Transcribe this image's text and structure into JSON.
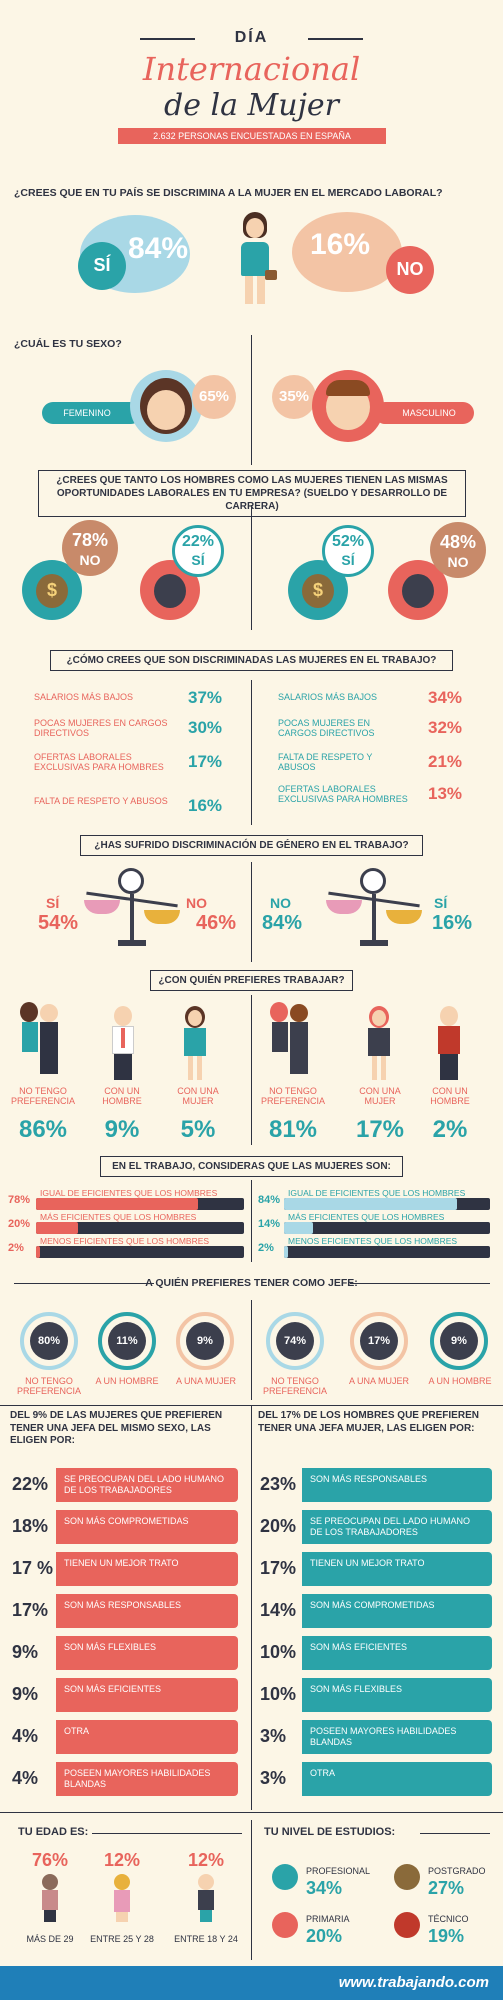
{
  "header": {
    "dia": "DÍA",
    "title_line1": "Internacional",
    "title_line2": "de la Mujer",
    "subtitle": "2.632 PERSONAS ENCUESTADAS EN ESPAÑA"
  },
  "q1": {
    "question": "¿CREES QUE EN TU PAÍS SE DISCRIMINA A LA MUJER EN EL MERCADO LABORAL?",
    "si_label": "SÍ",
    "si_pct": "84%",
    "no_pct": "16%",
    "no_label": "NO"
  },
  "q2": {
    "question": "¿CUÁL ES TU SEXO?",
    "fem_label": "FEMENINO",
    "fem_pct": "65%",
    "masc_pct": "35%",
    "masc_label": "MASCULINO"
  },
  "q3": {
    "question": "¿CREES QUE TANTO LOS HOMBRES COMO LAS MUJERES TIENEN LAS MISMAS OPORTUNIDADES LABORALES EN TU EMPRESA? (SUELDO Y DESARROLLO DE CARRERA)",
    "left": {
      "no_pct": "78%",
      "no_label": "NO",
      "si_pct": "22%",
      "si_label": "SÍ"
    },
    "right": {
      "si_pct": "52%",
      "si_label": "SÍ",
      "no_pct": "48%",
      "no_label": "NO"
    }
  },
  "q4": {
    "question": "¿CÓMO CREES QUE SON DISCRIMINADAS LAS MUJERES EN EL TRABAJO?",
    "left": [
      {
        "label": "SALARIOS MÁS BAJOS",
        "pct": "37%"
      },
      {
        "label": "POCAS MUJERES EN CARGOS DIRECTIVOS",
        "pct": "30%"
      },
      {
        "label": "OFERTAS LABORALES EXCLUSIVAS PARA HOMBRES",
        "pct": "17%"
      },
      {
        "label": "FALTA DE RESPETO Y ABUSOS",
        "pct": "16%"
      }
    ],
    "right": [
      {
        "label": "SALARIOS MÁS BAJOS",
        "pct": "34%"
      },
      {
        "label": "POCAS MUJERES EN CARGOS DIRECTIVOS",
        "pct": "32%"
      },
      {
        "label": "FALTA DE RESPETO Y ABUSOS",
        "pct": "21%"
      },
      {
        "label": "OFERTAS LABORALES EXCLUSIVAS PARA HOMBRES",
        "pct": "13%"
      }
    ]
  },
  "q5": {
    "question": "¿HAS SUFRIDO DISCRIMINACIÓN DE GÉNERO EN EL TRABAJO?",
    "left": {
      "si_label": "SÍ",
      "si_pct": "54%",
      "no_label": "NO",
      "no_pct": "46%"
    },
    "right": {
      "no_label": "NO",
      "no_pct": "84%",
      "si_label": "SÍ",
      "si_pct": "16%"
    }
  },
  "q6": {
    "question": "¿CON QUIÉN PREFIERES TRABAJAR?",
    "left": [
      {
        "label": "NO TENGO PREFERENCIA",
        "pct": "86%"
      },
      {
        "label": "CON UN HOMBRE",
        "pct": "9%"
      },
      {
        "label": "CON UNA MUJER",
        "pct": "5%"
      }
    ],
    "right": [
      {
        "label": "NO TENGO PREFERENCIA",
        "pct": "81%"
      },
      {
        "label": "CON UNA MUJER",
        "pct": "17%"
      },
      {
        "label": "CON UN HOMBRE",
        "pct": "2%"
      }
    ]
  },
  "q7": {
    "question": "EN EL TRABAJO, CONSIDERAS QUE LAS MUJERES SON:",
    "left": [
      {
        "pct": "78%",
        "label": "IGUAL DE EFICIENTES QUE LOS HOMBRES",
        "value": 78
      },
      {
        "pct": "20%",
        "label": "MÁS EFICIENTES QUE LOS HOMBRES",
        "value": 20
      },
      {
        "pct": "2%",
        "label": "MENOS EFICIENTES QUE LOS HOMBRES",
        "value": 2
      }
    ],
    "right": [
      {
        "pct": "84%",
        "label": "IGUAL DE EFICIENTES QUE LOS HOMBRES",
        "value": 84
      },
      {
        "pct": "14%",
        "label": "MÁS EFICIENTES QUE LOS HOMBRES",
        "value": 14
      },
      {
        "pct": "2%",
        "label": "MENOS EFICIENTES QUE LOS HOMBRES",
        "value": 2
      }
    ]
  },
  "q8": {
    "question": "A QUIÉN PREFIERES TENER COMO JEFE:",
    "left": [
      {
        "pct": "80%",
        "label": "NO TENGO PREFERENCIA"
      },
      {
        "pct": "11%",
        "label": "A UN HOMBRE"
      },
      {
        "pct": "9%",
        "label": "A UNA MUJER"
      }
    ],
    "right": [
      {
        "pct": "74%",
        "label": "NO TENGO PREFERENCIA"
      },
      {
        "pct": "17%",
        "label": "A UNA MUJER"
      },
      {
        "pct": "9%",
        "label": "A UN HOMBRE"
      }
    ]
  },
  "q9": {
    "left_title": "DEL 9% DE LAS MUJERES QUE PREFIEREN TENER UNA JEFA DEL MISMO SEXO, LAS ELIGEN POR:",
    "right_title": "DEL 17% DE LOS HOMBRES QUE PREFIEREN TENER UNA JEFA MUJER, LAS ELIGEN POR:",
    "left": [
      {
        "pct": "22%",
        "label": "SE PREOCUPAN DEL LADO HUMANO DE LOS TRABAJADORES"
      },
      {
        "pct": "18%",
        "label": "SON MÁS COMPROMETIDAS"
      },
      {
        "pct": "17 %",
        "label": "TIENEN UN MEJOR TRATO"
      },
      {
        "pct": "17%",
        "label": "SON MÁS RESPONSABLES"
      },
      {
        "pct": "9%",
        "label": "SON MÁS FLEXIBLES"
      },
      {
        "pct": "9%",
        "label": "SON MÁS EFICIENTES"
      },
      {
        "pct": "4%",
        "label": "OTRA"
      },
      {
        "pct": "4%",
        "label": "POSEEN MAYORES HABILIDADES BLANDAS"
      }
    ],
    "right": [
      {
        "pct": "23%",
        "label": "SON MÁS RESPONSABLES"
      },
      {
        "pct": "20%",
        "label": "SE PREOCUPAN DEL LADO HUMANO DE LOS TRABAJADORES"
      },
      {
        "pct": "17%",
        "label": "TIENEN UN MEJOR TRATO"
      },
      {
        "pct": "14%",
        "label": "SON MÁS COMPROMETIDAS"
      },
      {
        "pct": "10%",
        "label": "SON MÁS EFICIENTES"
      },
      {
        "pct": "10%",
        "label": "SON MÁS FLEXIBLES"
      },
      {
        "pct": "3%",
        "label": "POSEEN MAYORES HABILIDADES BLANDAS"
      },
      {
        "pct": "3%",
        "label": "OTRA"
      }
    ]
  },
  "age": {
    "title": "TU EDAD ES:",
    "items": [
      {
        "pct": "76%",
        "label": "MÁS DE 29"
      },
      {
        "pct": "12%",
        "label": "ENTRE 25 Y 28"
      },
      {
        "pct": "12%",
        "label": "ENTRE 18 Y 24"
      }
    ]
  },
  "edu": {
    "title": "TU NIVEL DE ESTUDIOS:",
    "items": [
      {
        "label": "PROFESIONAL",
        "pct": "34%"
      },
      {
        "label": "POSTGRADO",
        "pct": "27%"
      },
      {
        "label": "PRIMARIA",
        "pct": "20%"
      },
      {
        "label": "TÉCNICO",
        "pct": "19%"
      }
    ]
  },
  "footer": {
    "site": "www.trabajando.com"
  },
  "colors": {
    "coral": "#e8645c",
    "teal": "#2aa3a8",
    "dark": "#2f3342",
    "peach": "#f3c4a5",
    "lightblue": "#a9d8e6",
    "bg": "#fcf6e6"
  }
}
